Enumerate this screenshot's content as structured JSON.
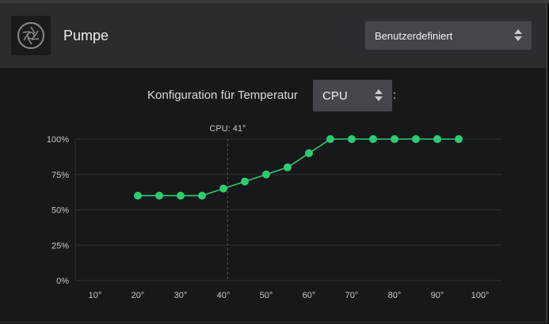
{
  "device": {
    "title": "Pumpe",
    "icon": "pump-fan-icon",
    "mode": {
      "selected": "Benutzerdefiniert"
    }
  },
  "config": {
    "label": "Konfiguration für Temperatur",
    "sensor": "CPU",
    "suffix": ":"
  },
  "colors": {
    "accent": "#2ecc71",
    "grid": "#2e2f33",
    "marker_line": "#555"
  },
  "chart_data": {
    "type": "line",
    "x": [
      20,
      25,
      30,
      35,
      40,
      45,
      50,
      55,
      60,
      65,
      70,
      75,
      80,
      85,
      90,
      95
    ],
    "y": [
      60,
      60,
      60,
      60,
      65,
      70,
      75,
      80,
      90,
      100,
      100,
      100,
      100,
      100,
      100,
      100
    ],
    "xlim": [
      10,
      100
    ],
    "ylim": [
      0,
      100
    ],
    "x_ticks": [
      10,
      20,
      30,
      40,
      50,
      60,
      70,
      80,
      90,
      100
    ],
    "x_tick_labels": [
      "10°",
      "20°",
      "30°",
      "40°",
      "50°",
      "60°",
      "70°",
      "80°",
      "90°",
      "100°"
    ],
    "y_ticks": [
      0,
      25,
      50,
      75,
      100
    ],
    "y_tick_labels": [
      "0%",
      "25%",
      "50%",
      "75%",
      "100%"
    ],
    "marker": {
      "label": "CPU: 41°",
      "x": 41
    },
    "grid": true,
    "legend": "none"
  }
}
